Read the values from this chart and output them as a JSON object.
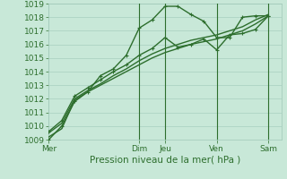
{
  "background_color": "#c8e8d8",
  "grid_color": "#a0c8b8",
  "line_color": "#2d6e2d",
  "title": "Pression niveau de la mer( hPa )",
  "ylim": [
    1009,
    1019
  ],
  "yticks": [
    1009,
    1010,
    1011,
    1012,
    1013,
    1014,
    1015,
    1016,
    1017,
    1018,
    1019
  ],
  "day_labels": [
    "Mer",
    "Dim",
    "Jeu",
    "Ven",
    "Sam"
  ],
  "day_positions": [
    0,
    3.5,
    4.5,
    6.5,
    8.5
  ],
  "xlim": [
    0,
    9
  ],
  "vline_positions": [
    3.5,
    4.5,
    6.5,
    8.5
  ],
  "series": [
    {
      "x": [
        0,
        0.5,
        1.0,
        1.5,
        2.0,
        2.5,
        3.0,
        3.5,
        4.0,
        4.5,
        5.0,
        5.5,
        6.0,
        6.5,
        7.0,
        7.5,
        8.0,
        8.5
      ],
      "y": [
        1009,
        1010,
        1011.8,
        1012.5,
        1013.7,
        1014.2,
        1015.2,
        1017.2,
        1017.8,
        1018.8,
        1018.8,
        1018.2,
        1017.7,
        1016.5,
        1016.5,
        1018.0,
        1018.1,
        1018.1
      ],
      "marker": "+",
      "lw": 1.0,
      "ms": 3
    },
    {
      "x": [
        0,
        0.5,
        1.0,
        1.5,
        2.0,
        2.5,
        3.0,
        3.5,
        4.0,
        4.5,
        5.0,
        5.5,
        6.0,
        6.5,
        7.0,
        7.5,
        8.0,
        8.5
      ],
      "y": [
        1009.2,
        1009.8,
        1011.9,
        1012.5,
        1013.0,
        1013.5,
        1014.0,
        1014.5,
        1015.0,
        1015.4,
        1015.7,
        1016.0,
        1016.2,
        1016.4,
        1016.7,
        1017.0,
        1017.5,
        1018.1
      ],
      "marker": null,
      "lw": 1.0,
      "ms": 0
    },
    {
      "x": [
        0,
        0.5,
        1.0,
        1.5,
        2.0,
        2.5,
        3.0,
        3.5,
        4.0,
        4.5,
        5.0,
        5.5,
        6.0,
        6.5,
        7.0,
        7.5,
        8.0,
        8.5
      ],
      "y": [
        1009.5,
        1010.2,
        1012.0,
        1012.6,
        1013.1,
        1013.7,
        1014.2,
        1014.8,
        1015.3,
        1015.7,
        1016.0,
        1016.3,
        1016.5,
        1016.7,
        1017.0,
        1017.3,
        1017.8,
        1018.2
      ],
      "marker": null,
      "lw": 1.0,
      "ms": 0
    },
    {
      "x": [
        0,
        0.5,
        1.0,
        1.5,
        2.0,
        2.5,
        3.0,
        3.5,
        4.0,
        4.5,
        5.0,
        5.5,
        6.0,
        6.5,
        7.0,
        7.5,
        8.0,
        8.5
      ],
      "y": [
        1009.6,
        1010.4,
        1012.2,
        1012.8,
        1013.4,
        1014.0,
        1014.5,
        1015.2,
        1015.7,
        1016.5,
        1015.8,
        1016.0,
        1016.4,
        1015.6,
        1016.7,
        1016.8,
        1017.1,
        1018.1
      ],
      "marker": "+",
      "lw": 1.0,
      "ms": 3
    }
  ],
  "font_color": "#2d6e2d",
  "label_fontsize": 6.5,
  "title_fontsize": 7.5
}
